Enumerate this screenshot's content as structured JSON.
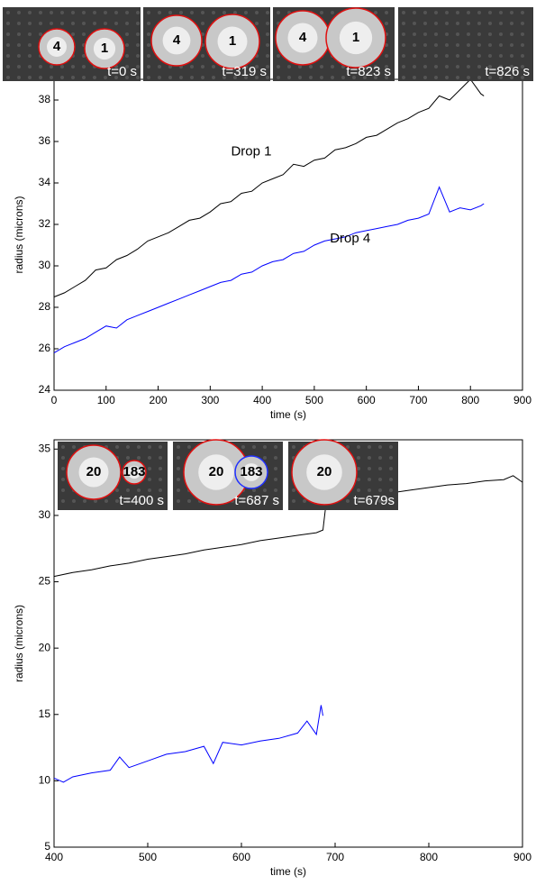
{
  "chart_data": [
    {
      "type": "line",
      "xlabel": "time (s)",
      "ylabel": "radius (microns)",
      "xlim": [
        0,
        900
      ],
      "ylim": [
        24,
        39
      ],
      "xticks": [
        0,
        100,
        200,
        300,
        400,
        500,
        600,
        700,
        800,
        900
      ],
      "yticks": [
        24,
        26,
        28,
        30,
        32,
        34,
        36,
        38
      ],
      "x": [
        0,
        20,
        40,
        60,
        80,
        100,
        120,
        140,
        160,
        180,
        200,
        220,
        240,
        260,
        280,
        300,
        320,
        340,
        360,
        380,
        400,
        420,
        440,
        460,
        480,
        500,
        520,
        540,
        560,
        580,
        600,
        620,
        640,
        660,
        680,
        700,
        720,
        740,
        760,
        780,
        800,
        820,
        826
      ],
      "series": [
        {
          "name": "Drop 1",
          "color": "#000000",
          "values": [
            28.5,
            28.7,
            29.0,
            29.3,
            29.8,
            29.9,
            30.3,
            30.5,
            30.8,
            31.2,
            31.4,
            31.6,
            31.9,
            32.2,
            32.3,
            32.6,
            33.0,
            33.1,
            33.5,
            33.6,
            34.0,
            34.2,
            34.4,
            34.9,
            34.8,
            35.1,
            35.2,
            35.6,
            35.7,
            35.9,
            36.2,
            36.3,
            36.6,
            36.9,
            37.1,
            37.4,
            37.6,
            38.2,
            38.0,
            38.5,
            39.0,
            38.3,
            38.2
          ]
        },
        {
          "name": "Drop 4",
          "color": "#0000ff",
          "values": [
            25.8,
            26.1,
            26.3,
            26.5,
            26.8,
            27.1,
            27.0,
            27.4,
            27.6,
            27.8,
            28.0,
            28.2,
            28.4,
            28.6,
            28.8,
            29.0,
            29.2,
            29.3,
            29.6,
            29.7,
            30.0,
            30.2,
            30.3,
            30.6,
            30.7,
            31.0,
            31.2,
            31.3,
            31.4,
            31.6,
            31.7,
            31.8,
            31.9,
            32.0,
            32.2,
            32.3,
            32.5,
            33.8,
            32.6,
            32.8,
            32.7,
            32.9,
            33.0
          ]
        }
      ],
      "insets": [
        {
          "drops": [
            "4",
            "1"
          ],
          "time": "t=0 s"
        },
        {
          "drops": [
            "4",
            "1"
          ],
          "time": "t=319 s"
        },
        {
          "drops": [
            "4",
            "1"
          ],
          "time": "t=823 s"
        },
        {
          "drops": [],
          "time": "t=826 s"
        }
      ]
    },
    {
      "type": "line",
      "xlabel": "time (s)",
      "ylabel": "radius (microns)",
      "xlim": [
        400,
        900
      ],
      "ylim": [
        5,
        35.7
      ],
      "xticks": [
        400,
        500,
        600,
        700,
        800,
        900
      ],
      "yticks": [
        5,
        10,
        15,
        20,
        25,
        30,
        35
      ],
      "series": [
        {
          "color": "#000000",
          "x": [
            400,
            420,
            440,
            460,
            480,
            500,
            520,
            540,
            560,
            580,
            600,
            620,
            640,
            660,
            680,
            687,
            690,
            700,
            720,
            740,
            760,
            780,
            800,
            820,
            840,
            860,
            880,
            890,
            900
          ],
          "values": [
            25.4,
            25.7,
            25.9,
            26.2,
            26.4,
            26.7,
            26.9,
            27.1,
            27.4,
            27.6,
            27.8,
            28.1,
            28.3,
            28.5,
            28.7,
            28.9,
            30.7,
            30.9,
            31.2,
            31.5,
            31.7,
            31.9,
            32.1,
            32.3,
            32.4,
            32.6,
            32.7,
            33.0,
            32.5
          ]
        },
        {
          "color": "#0000ff",
          "x": [
            400,
            410,
            420,
            440,
            460,
            470,
            480,
            500,
            520,
            540,
            560,
            570,
            580,
            600,
            620,
            640,
            660,
            670,
            680,
            685,
            687
          ],
          "values": [
            10.2,
            9.9,
            10.3,
            10.6,
            10.8,
            11.8,
            11.0,
            11.5,
            12.0,
            12.2,
            12.6,
            11.3,
            12.9,
            12.7,
            13.0,
            13.2,
            13.6,
            14.5,
            13.5,
            15.7,
            14.9
          ]
        }
      ],
      "insets": [
        {
          "drops": [
            "20",
            "183"
          ],
          "time": "t=400 s"
        },
        {
          "drops": [
            "20",
            "183"
          ],
          "time": "t=687 s"
        },
        {
          "drops": [
            "20"
          ],
          "time": "t=679s"
        }
      ]
    }
  ]
}
